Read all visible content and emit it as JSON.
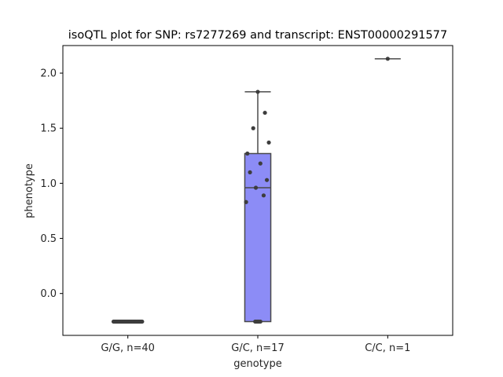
{
  "chart_data": {
    "type": "box",
    "title": "isoQTL plot for SNP: rs7277269 and transcript: ENST00000291577",
    "xlabel": "genotype",
    "ylabel": "phenotype",
    "categories": [
      "G/G, n=40",
      "G/C, n=17",
      "C/C, n=1"
    ],
    "ylim": [
      -0.38,
      2.25
    ],
    "yticks": [
      0.0,
      0.5,
      1.0,
      1.5,
      2.0
    ],
    "ytick_labels": [
      "0.0",
      "0.5",
      "1.0",
      "1.5",
      "2.0"
    ],
    "grid": false,
    "box_color": "#8c8cf6",
    "point_color": "#3d3d3d",
    "line_color": "#4a4a4a",
    "boxes": [
      {
        "category": "G/G, n=40",
        "min": -0.255,
        "q1": -0.255,
        "median": -0.255,
        "q3": -0.255,
        "max": -0.255
      },
      {
        "category": "G/C, n=17",
        "min": -0.255,
        "q1": -0.255,
        "median": 0.96,
        "q3": 1.27,
        "max": 1.83
      },
      {
        "category": "C/C, n=1",
        "min": 2.13,
        "q1": 2.13,
        "median": 2.13,
        "q3": 2.13,
        "max": 2.13
      }
    ],
    "points": [
      {
        "category": "G/G, n=40",
        "values": [
          -0.255,
          -0.255,
          -0.255,
          -0.255,
          -0.255,
          -0.255,
          -0.255,
          -0.255,
          -0.255,
          -0.255,
          -0.255,
          -0.255,
          -0.255,
          -0.255,
          -0.255,
          -0.255,
          -0.255,
          -0.255,
          -0.255,
          -0.255,
          -0.255,
          -0.255,
          -0.255,
          -0.255,
          -0.255,
          -0.255,
          -0.255,
          -0.255,
          -0.255,
          -0.255,
          -0.255,
          -0.255,
          -0.255,
          -0.255,
          -0.255,
          -0.255,
          -0.255,
          -0.255,
          -0.255,
          -0.255
        ]
      },
      {
        "category": "G/C, n=17",
        "values": [
          1.83,
          1.64,
          1.5,
          1.37,
          1.27,
          1.18,
          1.1,
          1.03,
          0.96,
          0.89,
          0.83,
          -0.255,
          -0.255,
          -0.255,
          -0.255,
          -0.255,
          -0.255
        ]
      },
      {
        "category": "C/C, n=1",
        "values": [
          2.13
        ]
      }
    ]
  }
}
